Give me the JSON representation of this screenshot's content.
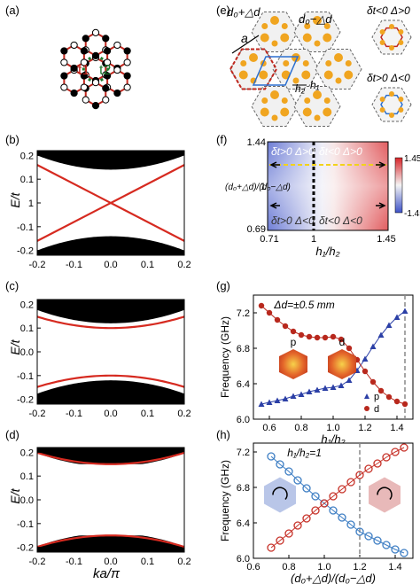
{
  "panel_labels": {
    "a": "(a)",
    "b": "(b)",
    "c": "(c)",
    "d": "(d)",
    "e": "(e)",
    "f": "(f)",
    "g": "(g)",
    "h": "(h)"
  },
  "panel_a": {
    "t1": "t1",
    "t2": "t2"
  },
  "left_axes": {
    "ylabel": "E/t",
    "xlabel": "ka/π",
    "xticks": [
      "-0.2",
      "-0.1",
      "0.0",
      "0.1",
      "0.2"
    ],
    "yticks_b": [
      "0.2",
      "0.1",
      "1",
      "-0.1",
      "-0.2"
    ],
    "yticks_cd": [
      "0.2",
      "0.1",
      "0.0",
      "-0.1",
      "-0.2"
    ]
  },
  "panel_e": {
    "d_plus": "d₀+△d",
    "d_minus": "d₀−△d",
    "a_label": "a",
    "h2": "h₂",
    "h1": "h₁",
    "top_right": "δt<0 Δ>0",
    "bottom_right": "δt>0 Δ<0"
  },
  "panel_f": {
    "ylabel": "(d₀+△d)/(d₀−△d)",
    "xlabel": "h₁/h₂",
    "yticks": [
      "1.44",
      "1",
      "0.69"
    ],
    "xticks": [
      "0.71",
      "1",
      "1.45"
    ],
    "q_tl": "δt>0  Δ>0",
    "q_tr": "δt<0  Δ>0",
    "q_bl": "δt>0  Δ<0",
    "q_br": "δt<0  Δ<0",
    "colorbar": [
      "1.45",
      "-1.45"
    ]
  },
  "chart_data": [
    {
      "panel": "g",
      "type": "scatter",
      "annotation": "Δd=±0.5 mm",
      "xlabel": "h₁/h₂",
      "ylabel": "Frequency (GHz)",
      "xlim": [
        0.5,
        1.5
      ],
      "ylim": [
        6.0,
        7.4
      ],
      "xticks": [
        0.6,
        0.8,
        1.0,
        1.2,
        1.4
      ],
      "yticks": [
        6.0,
        6.4,
        6.8,
        7.2
      ],
      "dashed_x": 1.45,
      "inset_labels": [
        "p",
        "d"
      ],
      "series": [
        {
          "name": "p",
          "color": "#2b3fa6",
          "x": [
            0.55,
            0.6,
            0.65,
            0.7,
            0.75,
            0.8,
            0.85,
            0.9,
            0.95,
            1.0,
            1.05,
            1.1,
            1.15,
            1.2,
            1.25,
            1.3,
            1.35,
            1.4,
            1.45
          ],
          "values": [
            6.17,
            6.19,
            6.21,
            6.23,
            6.26,
            6.28,
            6.31,
            6.33,
            6.35,
            6.36,
            6.38,
            6.44,
            6.55,
            6.68,
            6.82,
            6.95,
            7.06,
            7.15,
            7.22
          ]
        },
        {
          "name": "d",
          "color": "#b8281d",
          "x": [
            0.55,
            0.6,
            0.65,
            0.7,
            0.75,
            0.8,
            0.85,
            0.9,
            0.95,
            1.0,
            1.05,
            1.1,
            1.15,
            1.2,
            1.25,
            1.3,
            1.35,
            1.4,
            1.45
          ],
          "values": [
            7.28,
            7.2,
            7.12,
            7.05,
            6.99,
            6.95,
            6.93,
            6.92,
            6.92,
            6.93,
            6.9,
            6.8,
            6.67,
            6.54,
            6.42,
            6.32,
            6.25,
            6.2,
            6.17
          ]
        }
      ]
    },
    {
      "panel": "h",
      "type": "scatter",
      "annotation": "h₁/h₂=1",
      "xlabel": "(d₀+△d)/(d₀−△d)",
      "ylabel": "Frequency (GHz)",
      "xlim": [
        0.6,
        1.5
      ],
      "ylim": [
        6.0,
        7.3
      ],
      "xticks": [
        0.6,
        0.8,
        1.0,
        1.2,
        1.4
      ],
      "yticks": [
        6.0,
        6.4,
        6.8,
        7.2
      ],
      "dashed_x": 1.2,
      "series": [
        {
          "name": "blue",
          "color": "#3f7fc4",
          "x": [
            0.7,
            0.75,
            0.8,
            0.85,
            0.9,
            0.95,
            1.0,
            1.05,
            1.1,
            1.15,
            1.2,
            1.25,
            1.3,
            1.35,
            1.4,
            1.45
          ],
          "values": [
            7.15,
            7.06,
            6.98,
            6.88,
            6.79,
            6.7,
            6.62,
            6.54,
            6.46,
            6.38,
            6.3,
            6.25,
            6.2,
            6.15,
            6.1,
            6.06
          ]
        },
        {
          "name": "red",
          "color": "#c7332a",
          "x": [
            0.7,
            0.75,
            0.8,
            0.85,
            0.9,
            0.95,
            1.0,
            1.05,
            1.1,
            1.15,
            1.2,
            1.25,
            1.3,
            1.35,
            1.4,
            1.45
          ],
          "values": [
            6.12,
            6.2,
            6.28,
            6.37,
            6.45,
            6.54,
            6.62,
            6.7,
            6.78,
            6.86,
            6.94,
            7.01,
            7.07,
            7.14,
            7.2,
            7.25
          ]
        }
      ]
    }
  ]
}
